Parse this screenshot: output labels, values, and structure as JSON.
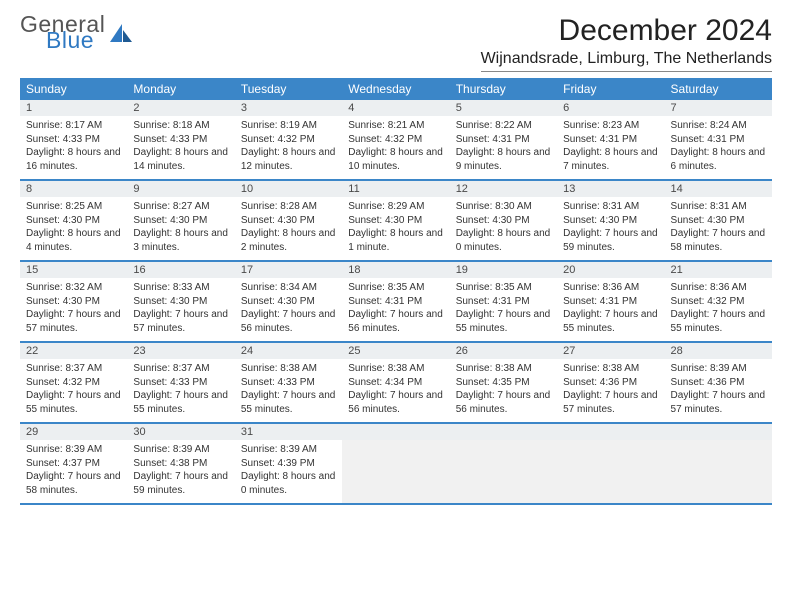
{
  "logo": {
    "line1": "General",
    "line2": "Blue"
  },
  "title": "December 2024",
  "subtitle": "Wijnandsrade, Limburg, The Netherlands",
  "colors": {
    "header_bg": "#3b86c8",
    "header_text": "#ffffff",
    "daynum_bg": "#eceff1",
    "week_border": "#3b86c8",
    "empty_bg": "#f1f1f1",
    "body_bg": "#ffffff",
    "text": "#333333",
    "logo_accent": "#2f79c2"
  },
  "day_names": [
    "Sunday",
    "Monday",
    "Tuesday",
    "Wednesday",
    "Thursday",
    "Friday",
    "Saturday"
  ],
  "weeks": [
    [
      {
        "n": "1",
        "sr": "Sunrise: 8:17 AM",
        "ss": "Sunset: 4:33 PM",
        "dl": "Daylight: 8 hours and 16 minutes."
      },
      {
        "n": "2",
        "sr": "Sunrise: 8:18 AM",
        "ss": "Sunset: 4:33 PM",
        "dl": "Daylight: 8 hours and 14 minutes."
      },
      {
        "n": "3",
        "sr": "Sunrise: 8:19 AM",
        "ss": "Sunset: 4:32 PM",
        "dl": "Daylight: 8 hours and 12 minutes."
      },
      {
        "n": "4",
        "sr": "Sunrise: 8:21 AM",
        "ss": "Sunset: 4:32 PM",
        "dl": "Daylight: 8 hours and 10 minutes."
      },
      {
        "n": "5",
        "sr": "Sunrise: 8:22 AM",
        "ss": "Sunset: 4:31 PM",
        "dl": "Daylight: 8 hours and 9 minutes."
      },
      {
        "n": "6",
        "sr": "Sunrise: 8:23 AM",
        "ss": "Sunset: 4:31 PM",
        "dl": "Daylight: 8 hours and 7 minutes."
      },
      {
        "n": "7",
        "sr": "Sunrise: 8:24 AM",
        "ss": "Sunset: 4:31 PM",
        "dl": "Daylight: 8 hours and 6 minutes."
      }
    ],
    [
      {
        "n": "8",
        "sr": "Sunrise: 8:25 AM",
        "ss": "Sunset: 4:30 PM",
        "dl": "Daylight: 8 hours and 4 minutes."
      },
      {
        "n": "9",
        "sr": "Sunrise: 8:27 AM",
        "ss": "Sunset: 4:30 PM",
        "dl": "Daylight: 8 hours and 3 minutes."
      },
      {
        "n": "10",
        "sr": "Sunrise: 8:28 AM",
        "ss": "Sunset: 4:30 PM",
        "dl": "Daylight: 8 hours and 2 minutes."
      },
      {
        "n": "11",
        "sr": "Sunrise: 8:29 AM",
        "ss": "Sunset: 4:30 PM",
        "dl": "Daylight: 8 hours and 1 minute."
      },
      {
        "n": "12",
        "sr": "Sunrise: 8:30 AM",
        "ss": "Sunset: 4:30 PM",
        "dl": "Daylight: 8 hours and 0 minutes."
      },
      {
        "n": "13",
        "sr": "Sunrise: 8:31 AM",
        "ss": "Sunset: 4:30 PM",
        "dl": "Daylight: 7 hours and 59 minutes."
      },
      {
        "n": "14",
        "sr": "Sunrise: 8:31 AM",
        "ss": "Sunset: 4:30 PM",
        "dl": "Daylight: 7 hours and 58 minutes."
      }
    ],
    [
      {
        "n": "15",
        "sr": "Sunrise: 8:32 AM",
        "ss": "Sunset: 4:30 PM",
        "dl": "Daylight: 7 hours and 57 minutes."
      },
      {
        "n": "16",
        "sr": "Sunrise: 8:33 AM",
        "ss": "Sunset: 4:30 PM",
        "dl": "Daylight: 7 hours and 57 minutes."
      },
      {
        "n": "17",
        "sr": "Sunrise: 8:34 AM",
        "ss": "Sunset: 4:30 PM",
        "dl": "Daylight: 7 hours and 56 minutes."
      },
      {
        "n": "18",
        "sr": "Sunrise: 8:35 AM",
        "ss": "Sunset: 4:31 PM",
        "dl": "Daylight: 7 hours and 56 minutes."
      },
      {
        "n": "19",
        "sr": "Sunrise: 8:35 AM",
        "ss": "Sunset: 4:31 PM",
        "dl": "Daylight: 7 hours and 55 minutes."
      },
      {
        "n": "20",
        "sr": "Sunrise: 8:36 AM",
        "ss": "Sunset: 4:31 PM",
        "dl": "Daylight: 7 hours and 55 minutes."
      },
      {
        "n": "21",
        "sr": "Sunrise: 8:36 AM",
        "ss": "Sunset: 4:32 PM",
        "dl": "Daylight: 7 hours and 55 minutes."
      }
    ],
    [
      {
        "n": "22",
        "sr": "Sunrise: 8:37 AM",
        "ss": "Sunset: 4:32 PM",
        "dl": "Daylight: 7 hours and 55 minutes."
      },
      {
        "n": "23",
        "sr": "Sunrise: 8:37 AM",
        "ss": "Sunset: 4:33 PM",
        "dl": "Daylight: 7 hours and 55 minutes."
      },
      {
        "n": "24",
        "sr": "Sunrise: 8:38 AM",
        "ss": "Sunset: 4:33 PM",
        "dl": "Daylight: 7 hours and 55 minutes."
      },
      {
        "n": "25",
        "sr": "Sunrise: 8:38 AM",
        "ss": "Sunset: 4:34 PM",
        "dl": "Daylight: 7 hours and 56 minutes."
      },
      {
        "n": "26",
        "sr": "Sunrise: 8:38 AM",
        "ss": "Sunset: 4:35 PM",
        "dl": "Daylight: 7 hours and 56 minutes."
      },
      {
        "n": "27",
        "sr": "Sunrise: 8:38 AM",
        "ss": "Sunset: 4:36 PM",
        "dl": "Daylight: 7 hours and 57 minutes."
      },
      {
        "n": "28",
        "sr": "Sunrise: 8:39 AM",
        "ss": "Sunset: 4:36 PM",
        "dl": "Daylight: 7 hours and 57 minutes."
      }
    ],
    [
      {
        "n": "29",
        "sr": "Sunrise: 8:39 AM",
        "ss": "Sunset: 4:37 PM",
        "dl": "Daylight: 7 hours and 58 minutes."
      },
      {
        "n": "30",
        "sr": "Sunrise: 8:39 AM",
        "ss": "Sunset: 4:38 PM",
        "dl": "Daylight: 7 hours and 59 minutes."
      },
      {
        "n": "31",
        "sr": "Sunrise: 8:39 AM",
        "ss": "Sunset: 4:39 PM",
        "dl": "Daylight: 8 hours and 0 minutes."
      },
      null,
      null,
      null,
      null
    ]
  ]
}
